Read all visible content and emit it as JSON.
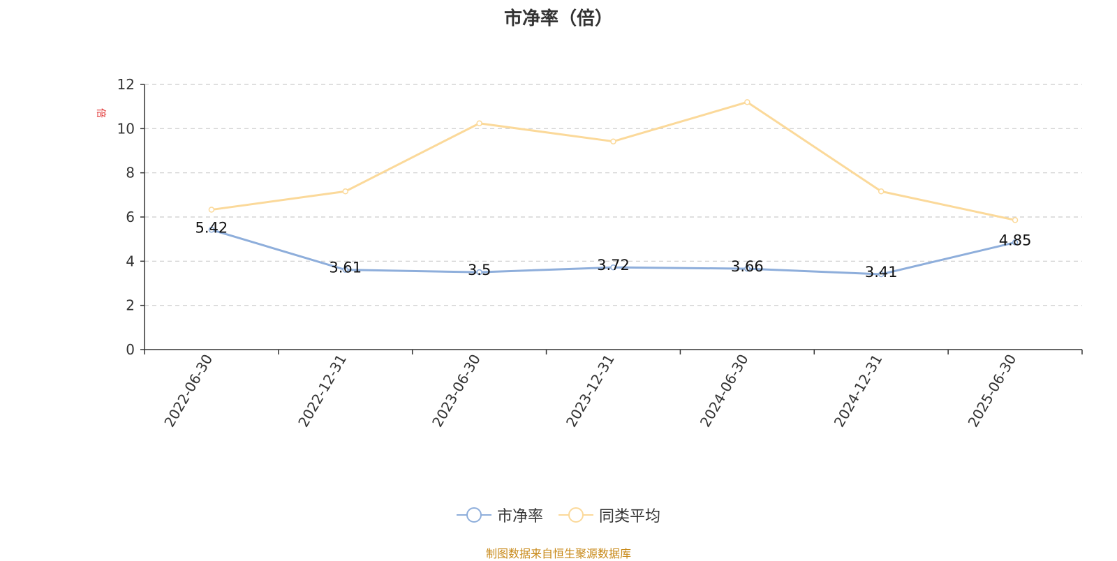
{
  "chart_data": {
    "type": "line",
    "title": "市净率（倍）",
    "ylabel": "倍",
    "xlabel": "",
    "categories": [
      "2022-06-30",
      "2022-12-31",
      "2023-06-30",
      "2023-12-31",
      "2024-06-30",
      "2024-12-31",
      "2025-06-30"
    ],
    "ylim": [
      0,
      12
    ],
    "yticks": [
      0,
      2,
      4,
      6,
      8,
      10,
      12
    ],
    "grid": true,
    "legend_position": "bottom",
    "series": [
      {
        "name": "市净率",
        "color": "#8eaedb",
        "values": [
          5.42,
          3.61,
          3.5,
          3.72,
          3.66,
          3.41,
          4.85
        ],
        "data_labels": [
          "5.42",
          "3.61",
          "3.5",
          "3.72",
          "3.66",
          "3.41",
          "4.85"
        ]
      },
      {
        "name": "同类平均",
        "color": "#fbd99a",
        "values": [
          6.33,
          7.16,
          10.24,
          9.42,
          11.2,
          7.16,
          5.86
        ]
      }
    ],
    "source": "制图数据来自恒生聚源数据库"
  }
}
